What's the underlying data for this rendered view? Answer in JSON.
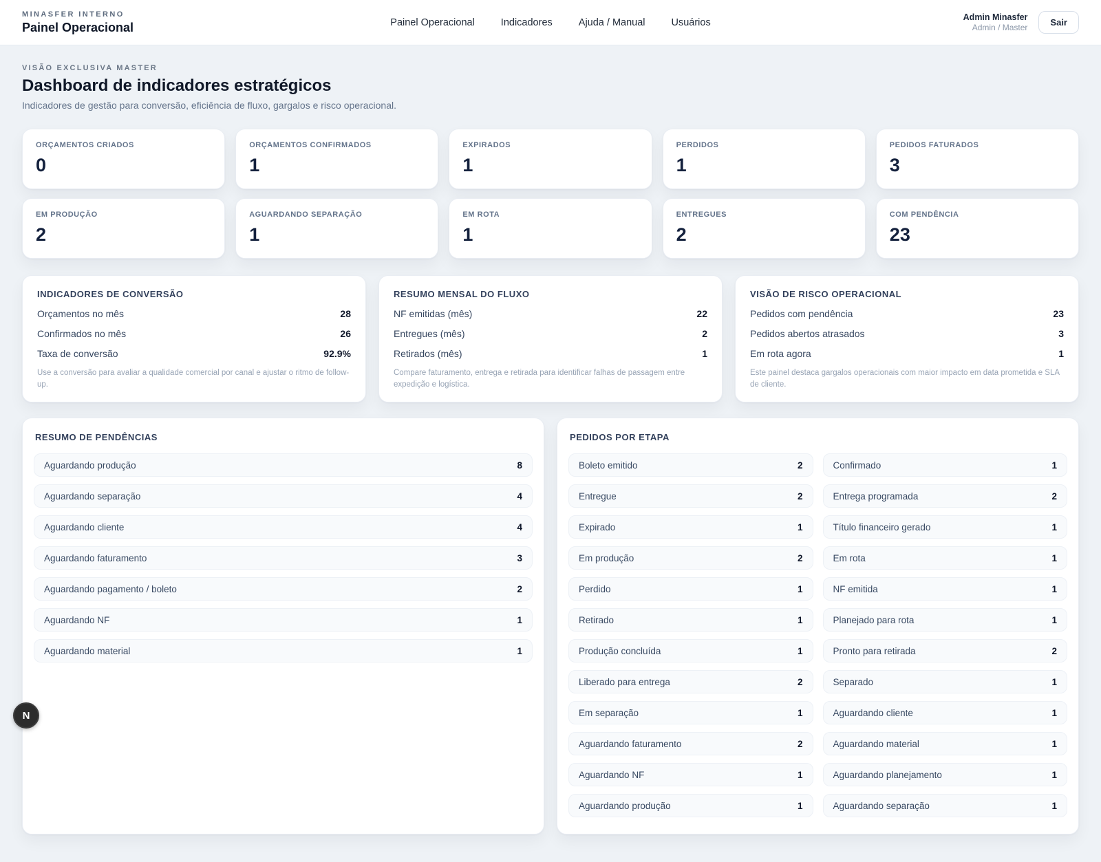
{
  "header": {
    "brand_eyebrow": "MINASFER INTERNO",
    "brand_title": "Painel Operacional",
    "nav": [
      "Painel Operacional",
      "Indicadores",
      "Ajuda / Manual",
      "Usuários"
    ],
    "user_name": "Admin Minasfer",
    "user_role": "Admin / Master",
    "logout_label": "Sair"
  },
  "page": {
    "eyebrow": "VISÃO EXCLUSIVA MASTER",
    "title": "Dashboard de indicadores estratégicos",
    "subtitle": "Indicadores de gestão para conversão, eficiência de fluxo, gargalos e risco operacional."
  },
  "stats": [
    {
      "label": "ORÇAMENTOS CRIADOS",
      "value": "0"
    },
    {
      "label": "ORÇAMENTOS CONFIRMADOS",
      "value": "1"
    },
    {
      "label": "EXPIRADOS",
      "value": "1"
    },
    {
      "label": "PERDIDOS",
      "value": "1"
    },
    {
      "label": "PEDIDOS FATURADOS",
      "value": "3"
    },
    {
      "label": "EM PRODUÇÃO",
      "value": "2"
    },
    {
      "label": "AGUARDANDO SEPARAÇÃO",
      "value": "1"
    },
    {
      "label": "EM ROTA",
      "value": "1"
    },
    {
      "label": "ENTREGUES",
      "value": "2"
    },
    {
      "label": "COM PENDÊNCIA",
      "value": "23"
    }
  ],
  "insights": [
    {
      "title": "INDICADORES DE CONVERSÃO",
      "rows": [
        {
          "label": "Orçamentos no mês",
          "value": "28"
        },
        {
          "label": "Confirmados no mês",
          "value": "26"
        },
        {
          "label": "Taxa de conversão",
          "value": "92.9%"
        }
      ],
      "note": "Use a conversão para avaliar a qualidade comercial por canal e ajustar o ritmo de follow-up."
    },
    {
      "title": "RESUMO MENSAL DO FLUXO",
      "rows": [
        {
          "label": "NF emitidas (mês)",
          "value": "22"
        },
        {
          "label": "Entregues (mês)",
          "value": "2"
        },
        {
          "label": "Retirados (mês)",
          "value": "1"
        }
      ],
      "note": "Compare faturamento, entrega e retirada para identificar falhas de passagem entre expedição e logística."
    },
    {
      "title": "VISÃO DE RISCO OPERACIONAL",
      "rows": [
        {
          "label": "Pedidos com pendência",
          "value": "23"
        },
        {
          "label": "Pedidos abertos atrasados",
          "value": "3"
        },
        {
          "label": "Em rota agora",
          "value": "1"
        }
      ],
      "note": "Este painel destaca gargalos operacionais com maior impacto em data prometida e SLA de cliente."
    }
  ],
  "pendencias": {
    "title": "RESUMO DE PENDÊNCIAS",
    "items": [
      {
        "label": "Aguardando produção",
        "value": "8"
      },
      {
        "label": "Aguardando separação",
        "value": "4"
      },
      {
        "label": "Aguardando cliente",
        "value": "4"
      },
      {
        "label": "Aguardando faturamento",
        "value": "3"
      },
      {
        "label": "Aguardando pagamento / boleto",
        "value": "2"
      },
      {
        "label": "Aguardando NF",
        "value": "1"
      },
      {
        "label": "Aguardando material",
        "value": "1"
      }
    ]
  },
  "etapas": {
    "title": "PEDIDOS POR ETAPA",
    "items": [
      {
        "label": "Boleto emitido",
        "value": "2"
      },
      {
        "label": "Confirmado",
        "value": "1"
      },
      {
        "label": "Entregue",
        "value": "2"
      },
      {
        "label": "Entrega programada",
        "value": "2"
      },
      {
        "label": "Expirado",
        "value": "1"
      },
      {
        "label": "Título financeiro gerado",
        "value": "1"
      },
      {
        "label": "Em produção",
        "value": "2"
      },
      {
        "label": "Em rota",
        "value": "1"
      },
      {
        "label": "Perdido",
        "value": "1"
      },
      {
        "label": "NF emitida",
        "value": "1"
      },
      {
        "label": "Retirado",
        "value": "1"
      },
      {
        "label": "Planejado para rota",
        "value": "1"
      },
      {
        "label": "Produção concluída",
        "value": "1"
      },
      {
        "label": "Pronto para retirada",
        "value": "2"
      },
      {
        "label": "Liberado para entrega",
        "value": "2"
      },
      {
        "label": "Separado",
        "value": "1"
      },
      {
        "label": "Em separação",
        "value": "1"
      },
      {
        "label": "Aguardando cliente",
        "value": "1"
      },
      {
        "label": "Aguardando faturamento",
        "value": "2"
      },
      {
        "label": "Aguardando material",
        "value": "1"
      },
      {
        "label": "Aguardando NF",
        "value": "1"
      },
      {
        "label": "Aguardando planejamento",
        "value": "1"
      },
      {
        "label": "Aguardando produção",
        "value": "1"
      },
      {
        "label": "Aguardando separação",
        "value": "1"
      }
    ]
  },
  "floating_widget": {
    "label": "N"
  },
  "colors": {
    "page_background": "#eef2f6",
    "card_background": "#ffffff",
    "card_border": "#e9edf3",
    "text_primary": "#0f172a",
    "text_muted": "#64748b",
    "note_text": "#98a4b5",
    "item_background": "#f8fafc",
    "floating_button_background": "#2c2c2c"
  }
}
